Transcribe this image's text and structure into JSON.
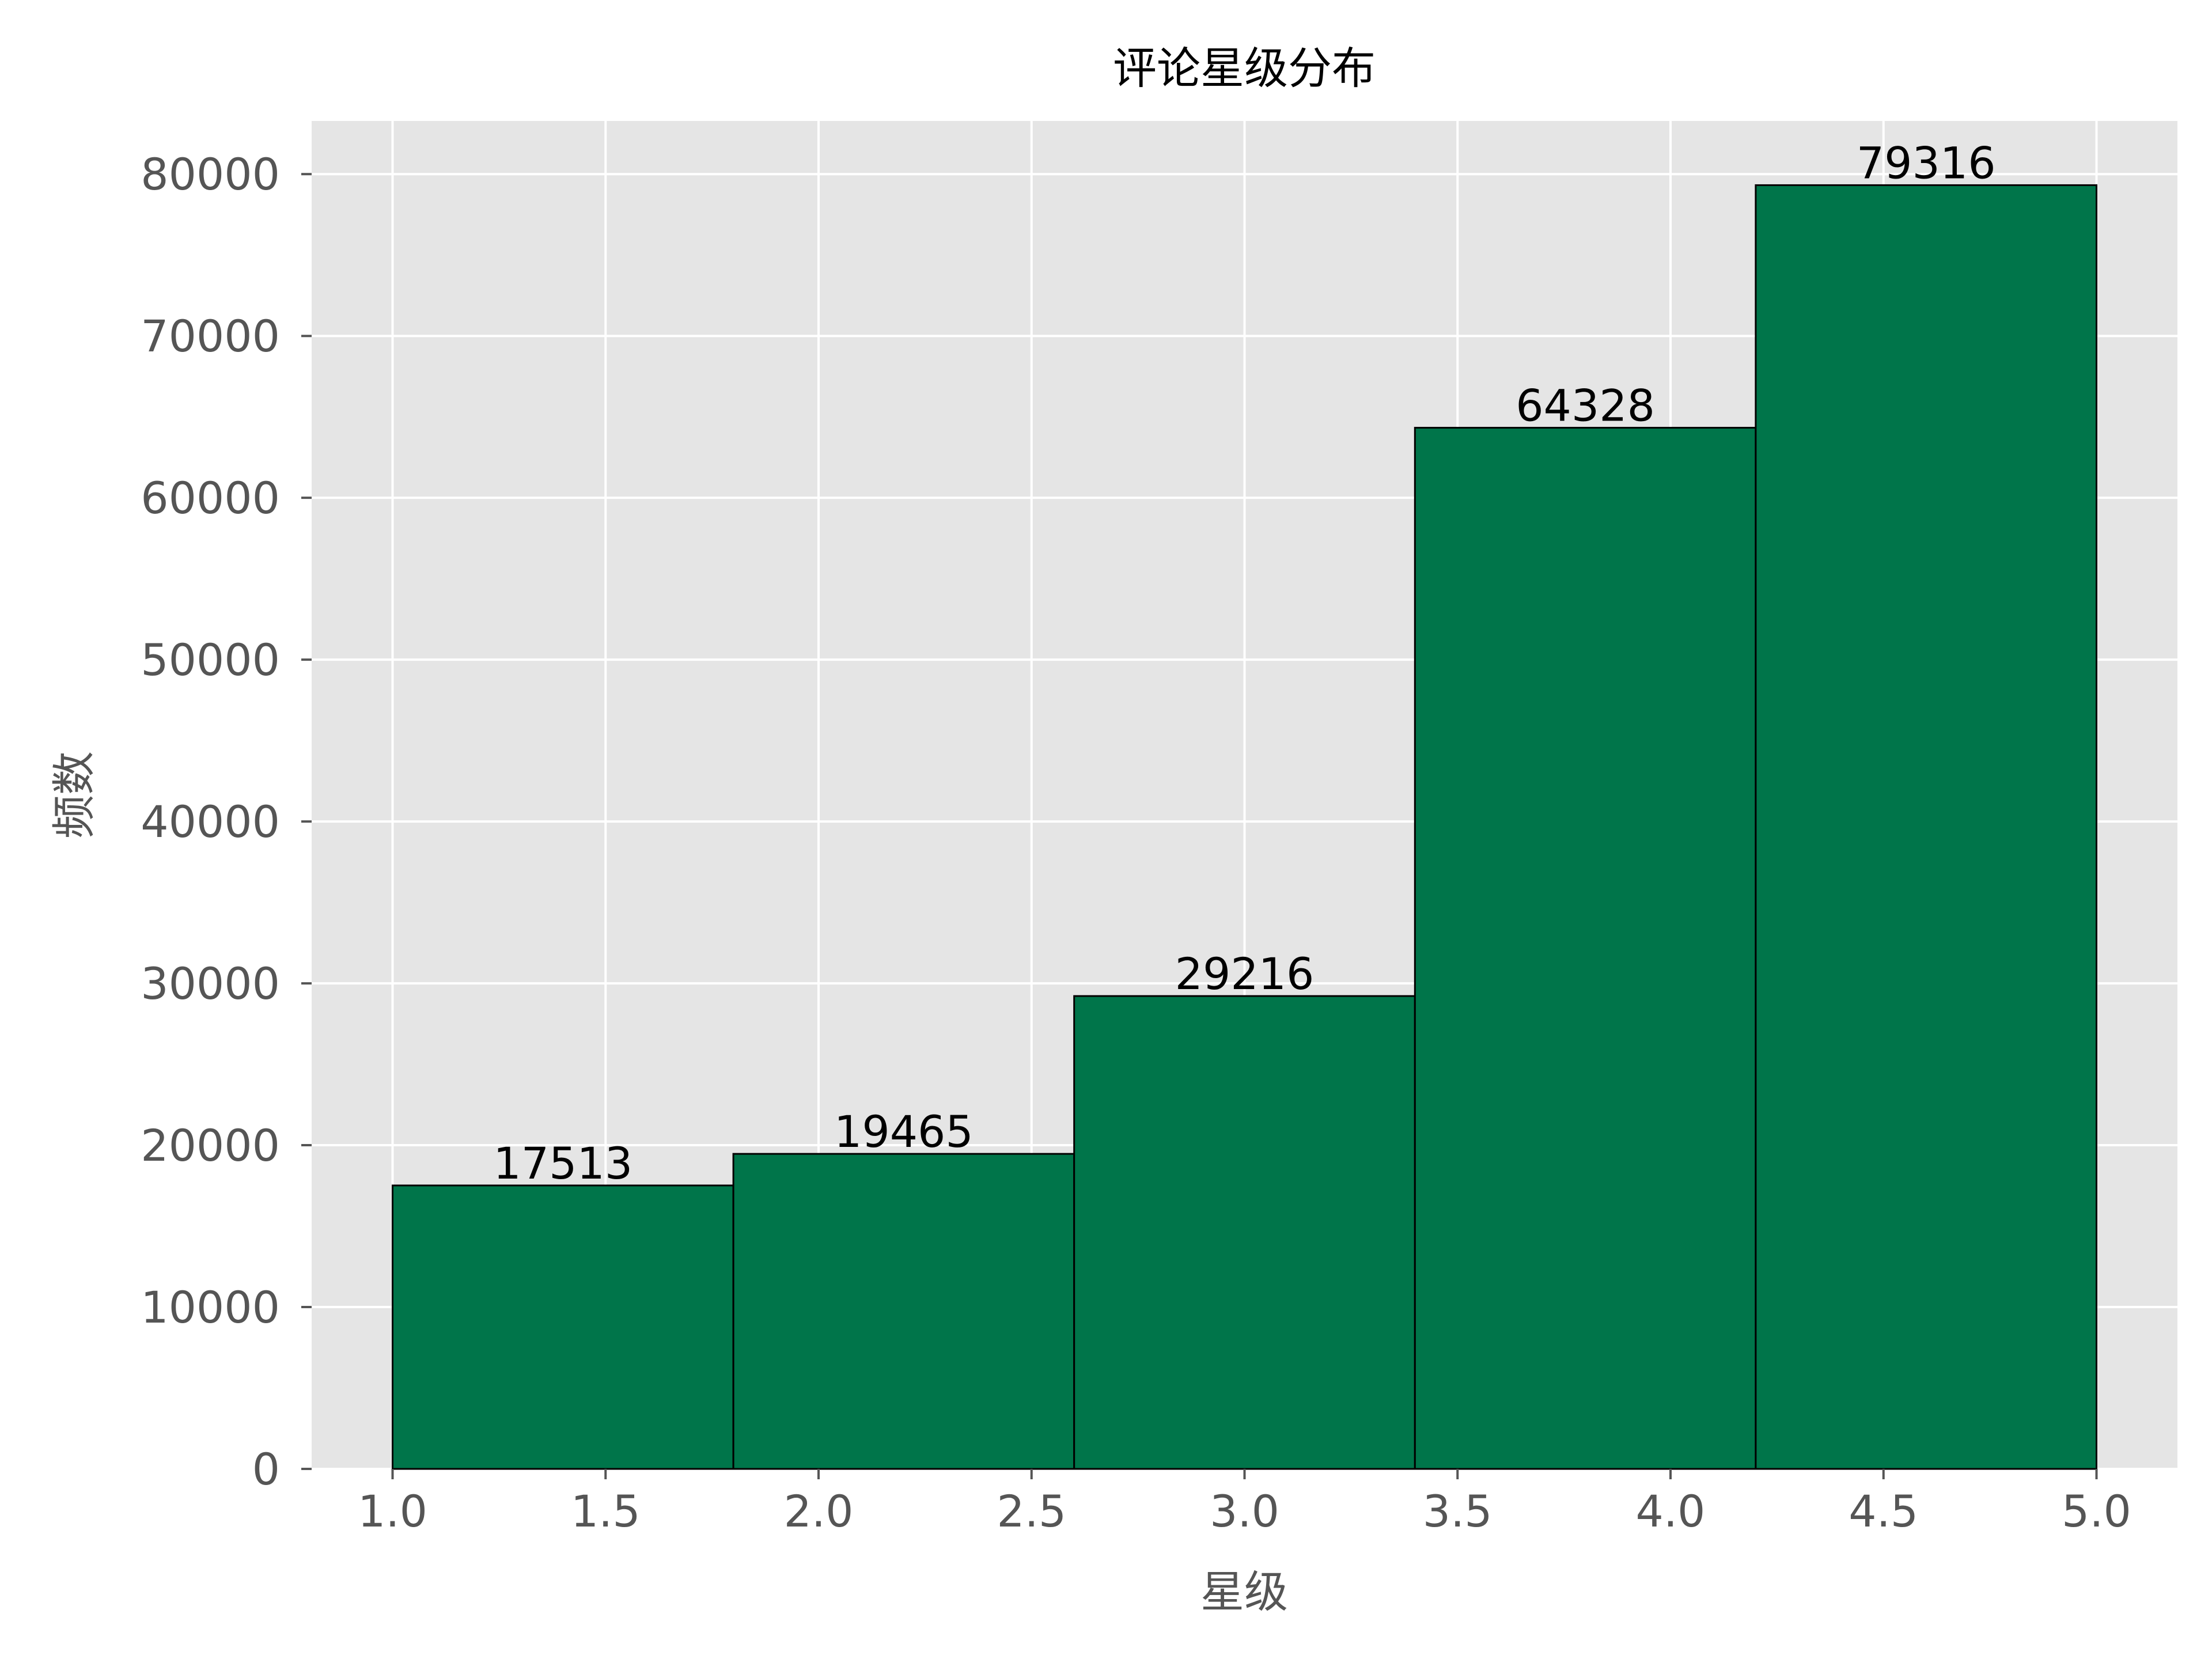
{
  "chart_data": {
    "type": "bar",
    "title": "评论星级分布",
    "xlabel": "星级",
    "ylabel": "频数",
    "bins": [
      {
        "start": 1.0,
        "end": 1.8,
        "value": 17513
      },
      {
        "start": 1.8,
        "end": 2.6,
        "value": 19465
      },
      {
        "start": 2.6,
        "end": 3.4,
        "value": 29216
      },
      {
        "start": 3.4,
        "end": 4.2,
        "value": 64328
      },
      {
        "start": 4.2,
        "end": 5.0,
        "value": 79316
      }
    ],
    "xticks": [
      "1.0",
      "1.5",
      "2.0",
      "2.5",
      "3.0",
      "3.5",
      "4.0",
      "4.5",
      "5.0"
    ],
    "yticks": [
      "0",
      "10000",
      "20000",
      "30000",
      "40000",
      "50000",
      "60000",
      "70000",
      "80000"
    ],
    "xlim": [
      0.81,
      5.19
    ],
    "ylim": [
      0,
      83282
    ],
    "grid": true,
    "colors": {
      "bar_fill": "#00754A",
      "bar_edge": "#000000",
      "plot_background": "#E5E5E5",
      "grid": "#FFFFFF",
      "tick_text": "#555555"
    }
  }
}
